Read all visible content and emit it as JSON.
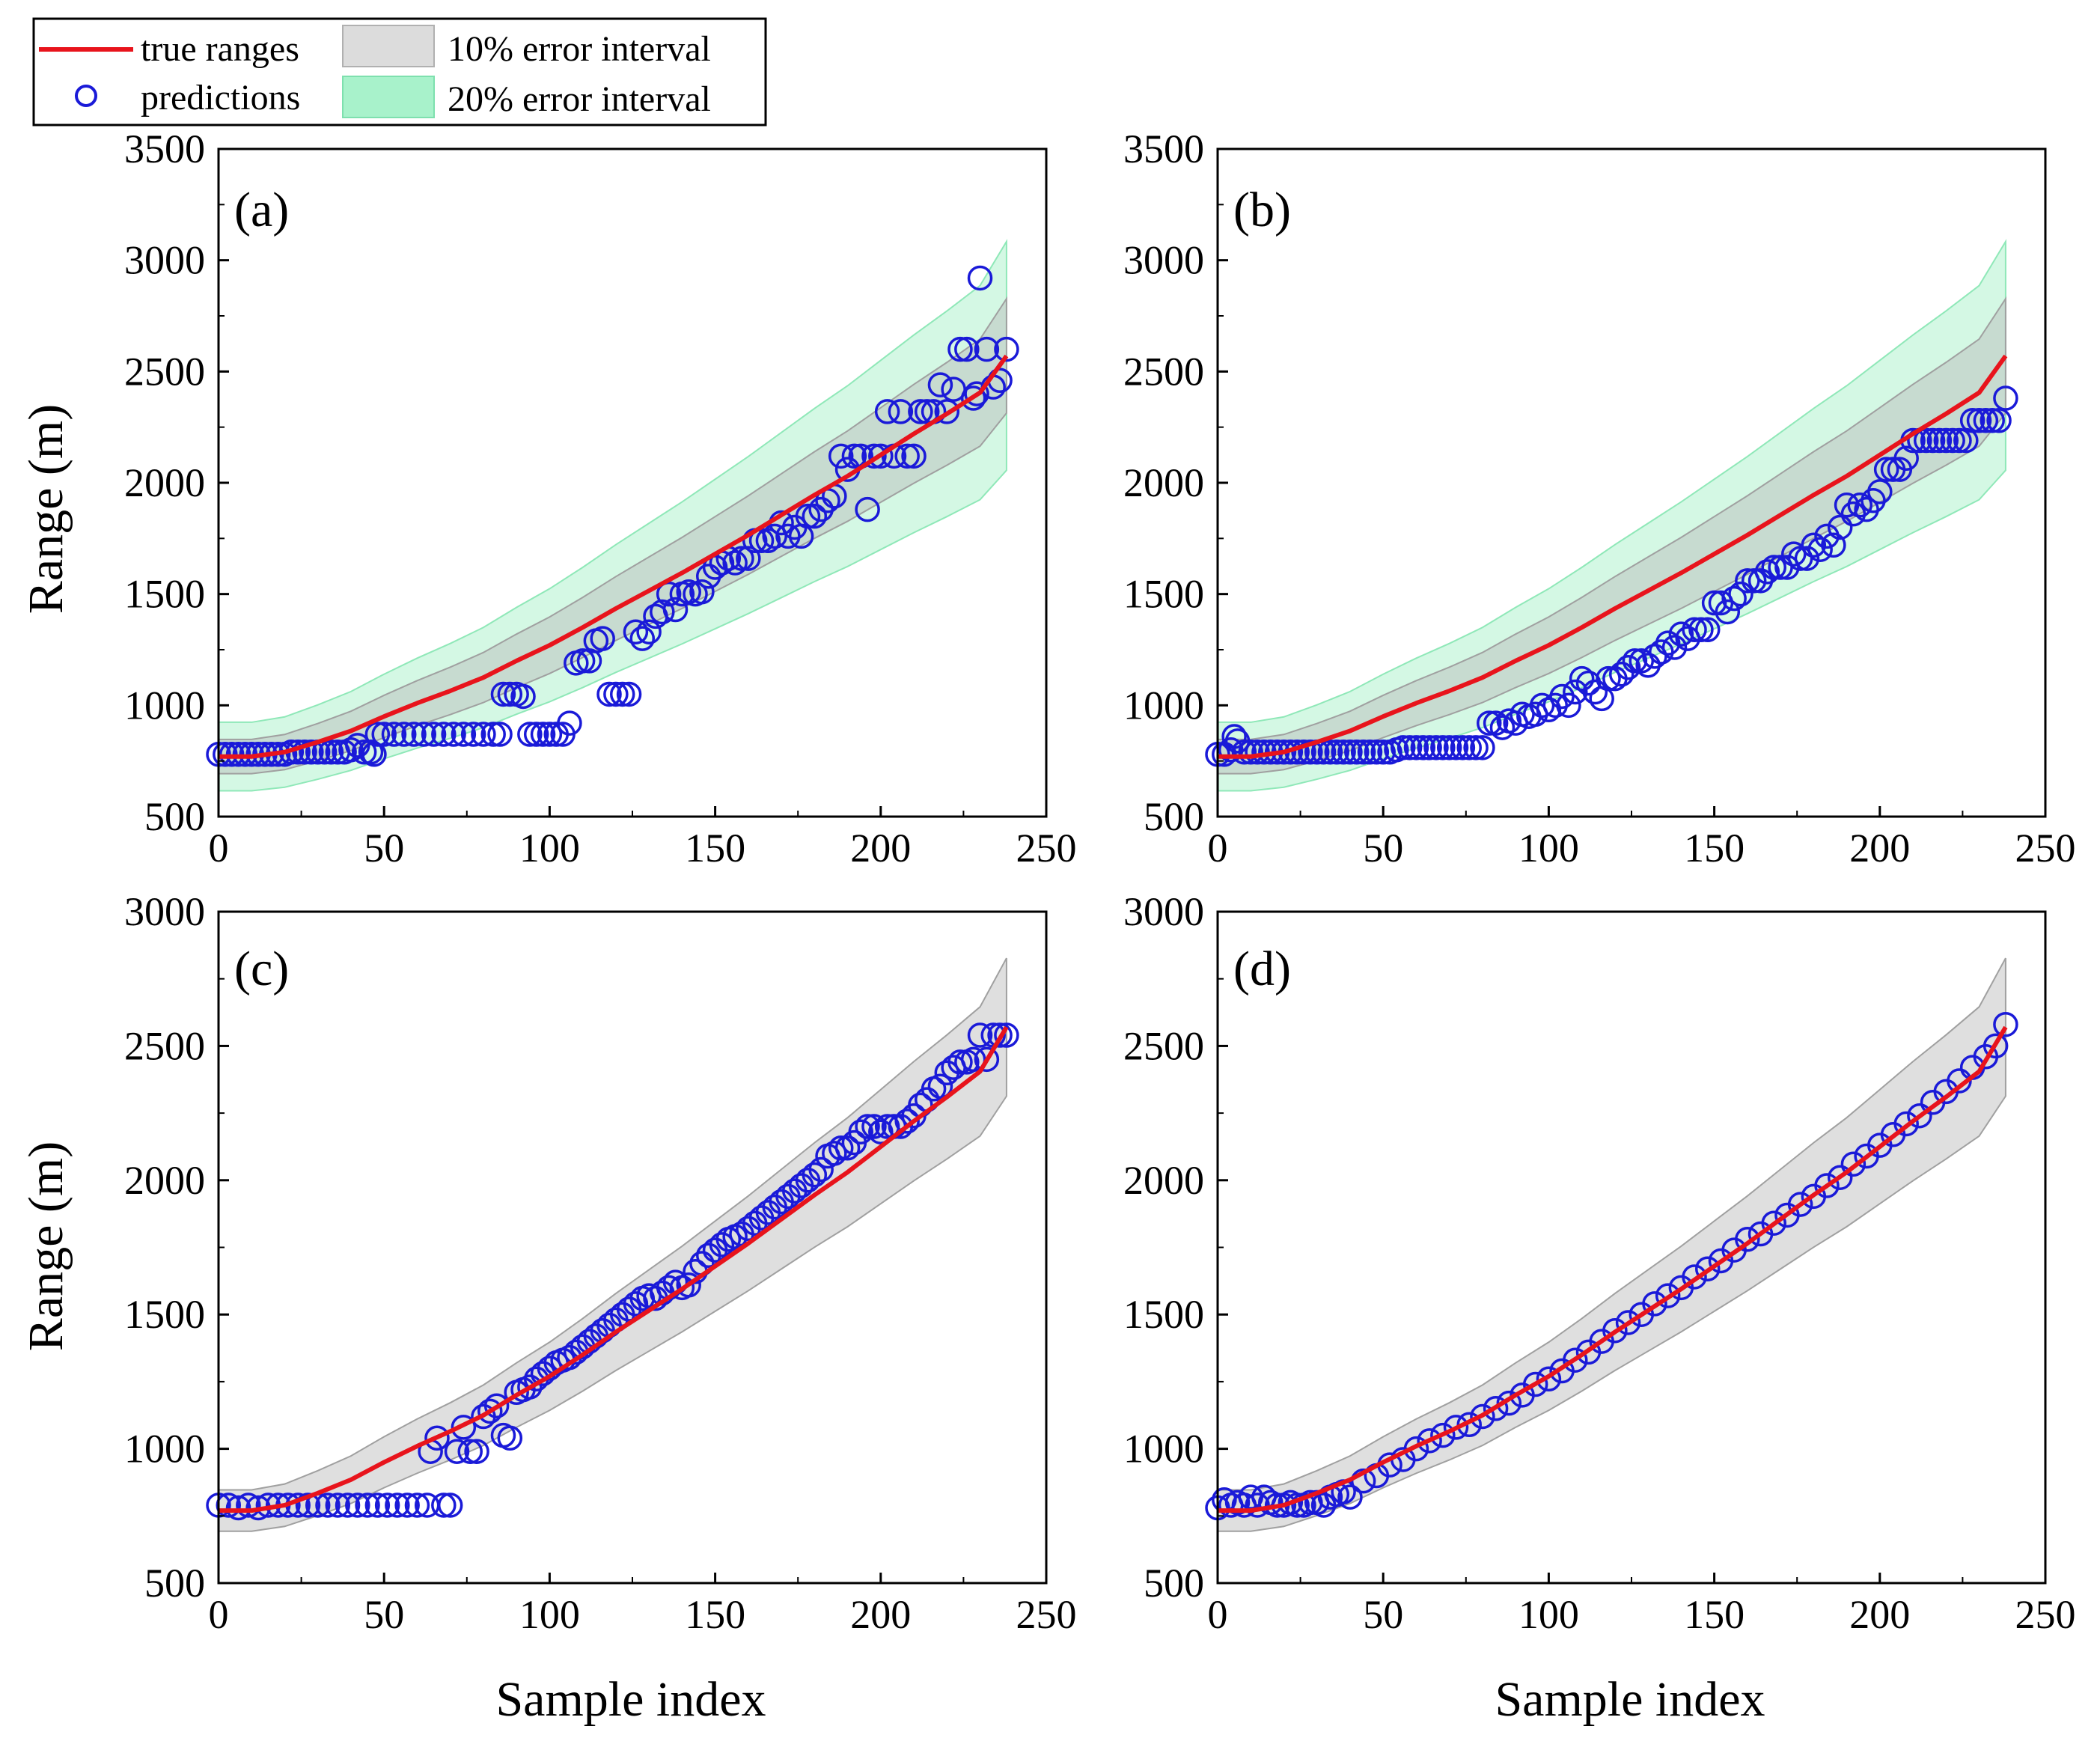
{
  "figure": {
    "legend": {
      "true_ranges": "true ranges",
      "predictions": "predictions",
      "err10": "10% error interval",
      "err20": "20% error interval"
    },
    "xlabel": "Sample index",
    "ylabel": "Range (m)"
  },
  "colors": {
    "true_line": "#e8141c",
    "prediction": "#1a1ad8",
    "band10": "#b9b9b9",
    "band20": "#9ff0c4"
  },
  "chart_data": [
    {
      "panel": "(a)",
      "type": "scatter",
      "xlim": [
        0,
        250
      ],
      "ylim": [
        500,
        3500
      ],
      "xticks": [
        0,
        50,
        100,
        150,
        200,
        250
      ],
      "yticks": [
        500,
        1000,
        1500,
        2000,
        2500,
        3000,
        3500
      ],
      "bands": [
        "10%",
        "20%"
      ],
      "true_ranges": {
        "x": [
          0,
          10,
          20,
          30,
          40,
          50,
          60,
          70,
          80,
          90,
          100,
          110,
          120,
          130,
          140,
          150,
          160,
          170,
          180,
          190,
          200,
          210,
          220,
          230,
          238
        ],
        "y": [
          770,
          770,
          790,
          835,
          885,
          950,
          1010,
          1065,
          1125,
          1200,
          1270,
          1350,
          1435,
          1515,
          1595,
          1680,
          1765,
          1855,
          1945,
          2030,
          2125,
          2220,
          2310,
          2405,
          2570
        ]
      },
      "predictions": {
        "x": [
          0,
          2,
          4,
          6,
          8,
          10,
          12,
          14,
          16,
          18,
          20,
          22,
          24,
          26,
          28,
          30,
          32,
          34,
          36,
          38,
          40,
          42,
          44,
          46,
          47,
          48,
          50,
          53,
          56,
          59,
          62,
          65,
          68,
          71,
          74,
          77,
          80,
          83,
          85,
          86,
          88,
          90,
          92,
          94,
          96,
          98,
          100,
          102,
          104,
          106,
          108,
          110,
          112,
          114,
          116,
          118,
          120,
          122,
          124,
          126,
          128,
          130,
          132,
          134,
          136,
          138,
          140,
          142,
          144,
          146,
          148,
          150,
          152,
          154,
          156,
          158,
          160,
          162,
          164,
          166,
          168,
          170,
          172,
          174,
          176,
          178,
          180,
          182,
          184,
          186,
          188,
          190,
          192,
          194,
          196,
          198,
          200,
          202,
          204,
          206,
          208,
          210,
          212,
          214,
          216,
          218,
          220,
          222,
          224,
          226,
          228,
          229,
          230,
          232,
          234,
          236,
          238
        ],
        "y": [
          780,
          780,
          780,
          780,
          780,
          780,
          780,
          780,
          780,
          780,
          780,
          790,
          790,
          790,
          790,
          790,
          790,
          790,
          790,
          790,
          800,
          820,
          790,
          790,
          780,
          870,
          870,
          870,
          870,
          870,
          870,
          870,
          870,
          870,
          870,
          870,
          870,
          870,
          870,
          1050,
          1050,
          1050,
          1040,
          870,
          870,
          870,
          870,
          870,
          870,
          920,
          1190,
          1200,
          1200,
          1290,
          1300,
          1050,
          1050,
          1050,
          1050,
          1330,
          1300,
          1330,
          1400,
          1420,
          1500,
          1430,
          1500,
          1510,
          1500,
          1510,
          1580,
          1620,
          1640,
          1660,
          1640,
          1660,
          1660,
          1740,
          1740,
          1740,
          1760,
          1820,
          1760,
          1800,
          1760,
          1850,
          1850,
          1880,
          1920,
          1940,
          2120,
          2060,
          2120,
          2120,
          1880,
          2120,
          2120,
          2320,
          2120,
          2320,
          2120,
          2120,
          2320,
          2320,
          2320,
          2440,
          2320,
          2420,
          2600,
          2600,
          2380,
          2400,
          2920,
          2600,
          2430,
          2460,
          2600
        ]
      }
    },
    {
      "panel": "(b)",
      "type": "scatter",
      "xlim": [
        0,
        250
      ],
      "ylim": [
        500,
        3500
      ],
      "xticks": [
        0,
        50,
        100,
        150,
        200,
        250
      ],
      "yticks": [
        500,
        1000,
        1500,
        2000,
        2500,
        3000,
        3500
      ],
      "bands": [
        "10%",
        "20%"
      ],
      "true_ranges": {
        "x": [
          0,
          10,
          20,
          30,
          40,
          50,
          60,
          70,
          80,
          90,
          100,
          110,
          120,
          130,
          140,
          150,
          160,
          170,
          180,
          190,
          200,
          210,
          220,
          230,
          238
        ],
        "y": [
          770,
          770,
          790,
          835,
          885,
          950,
          1010,
          1065,
          1125,
          1200,
          1270,
          1350,
          1435,
          1515,
          1595,
          1680,
          1765,
          1855,
          1945,
          2030,
          2125,
          2220,
          2310,
          2405,
          2570
        ]
      },
      "predictions": {
        "x": [
          0,
          2,
          4,
          5,
          6,
          8,
          10,
          12,
          14,
          16,
          18,
          20,
          22,
          24,
          26,
          28,
          30,
          32,
          34,
          36,
          38,
          40,
          42,
          44,
          46,
          48,
          50,
          52,
          54,
          56,
          58,
          60,
          62,
          64,
          66,
          68,
          70,
          72,
          74,
          76,
          78,
          80,
          82,
          84,
          86,
          88,
          90,
          92,
          94,
          96,
          98,
          100,
          102,
          104,
          106,
          108,
          110,
          112,
          114,
          116,
          118,
          120,
          122,
          124,
          126,
          128,
          130,
          132,
          134,
          136,
          138,
          140,
          142,
          144,
          146,
          148,
          150,
          152,
          154,
          156,
          158,
          160,
          162,
          164,
          166,
          168,
          170,
          172,
          174,
          176,
          178,
          180,
          182,
          184,
          186,
          188,
          190,
          192,
          194,
          196,
          198,
          200,
          202,
          204,
          206,
          208,
          210,
          212,
          214,
          216,
          218,
          220,
          222,
          224,
          226,
          228,
          230,
          232,
          234,
          236,
          238
        ],
        "y": [
          780,
          780,
          800,
          860,
          840,
          790,
          790,
          790,
          790,
          790,
          790,
          790,
          790,
          790,
          790,
          790,
          790,
          790,
          790,
          790,
          790,
          790,
          790,
          790,
          790,
          790,
          790,
          790,
          800,
          810,
          810,
          810,
          810,
          810,
          810,
          810,
          810,
          810,
          810,
          810,
          810,
          810,
          920,
          920,
          900,
          930,
          920,
          960,
          950,
          960,
          1000,
          980,
          1000,
          1040,
          1000,
          1060,
          1120,
          1100,
          1060,
          1030,
          1120,
          1120,
          1140,
          1170,
          1200,
          1200,
          1180,
          1220,
          1240,
          1280,
          1260,
          1320,
          1300,
          1340,
          1340,
          1340,
          1460,
          1460,
          1420,
          1480,
          1500,
          1560,
          1560,
          1560,
          1600,
          1620,
          1620,
          1620,
          1680,
          1660,
          1660,
          1720,
          1700,
          1760,
          1720,
          1800,
          1900,
          1860,
          1900,
          1880,
          1920,
          1960,
          2060,
          2060,
          2060,
          2110,
          2190,
          2190,
          2190,
          2190,
          2190,
          2190,
          2190,
          2190,
          2190,
          2280,
          2280,
          2280,
          2280,
          2280,
          2380
        ]
      }
    },
    {
      "panel": "(c)",
      "type": "scatter",
      "xlim": [
        0,
        250
      ],
      "ylim": [
        500,
        3000
      ],
      "xticks": [
        0,
        50,
        100,
        150,
        200,
        250
      ],
      "yticks": [
        500,
        1000,
        1500,
        2000,
        2500,
        3000
      ],
      "bands": [
        "10%"
      ],
      "true_ranges": {
        "x": [
          0,
          10,
          20,
          30,
          40,
          50,
          60,
          70,
          80,
          90,
          100,
          110,
          120,
          130,
          140,
          150,
          160,
          170,
          180,
          190,
          200,
          210,
          220,
          230,
          238
        ],
        "y": [
          770,
          770,
          790,
          835,
          885,
          950,
          1010,
          1065,
          1125,
          1200,
          1270,
          1350,
          1435,
          1515,
          1595,
          1680,
          1765,
          1855,
          1945,
          2030,
          2125,
          2220,
          2310,
          2405,
          2570
        ]
      },
      "predictions": {
        "x": [
          0,
          3,
          6,
          9,
          12,
          15,
          18,
          21,
          24,
          27,
          30,
          33,
          36,
          39,
          42,
          45,
          48,
          51,
          54,
          57,
          60,
          63,
          64,
          66,
          68,
          70,
          72,
          74,
          76,
          78,
          80,
          82,
          84,
          86,
          88,
          90,
          92,
          94,
          96,
          98,
          100,
          102,
          104,
          106,
          108,
          110,
          112,
          114,
          116,
          118,
          120,
          122,
          124,
          126,
          128,
          130,
          132,
          134,
          136,
          138,
          140,
          142,
          144,
          146,
          148,
          150,
          152,
          154,
          156,
          158,
          160,
          162,
          164,
          166,
          168,
          170,
          172,
          174,
          176,
          178,
          180,
          182,
          184,
          186,
          188,
          190,
          192,
          194,
          196,
          198,
          200,
          202,
          204,
          206,
          208,
          210,
          212,
          214,
          216,
          218,
          220,
          222,
          224,
          226,
          228,
          230,
          232,
          234,
          236,
          238
        ],
        "y": [
          790,
          790,
          780,
          790,
          780,
          790,
          790,
          790,
          790,
          790,
          790,
          790,
          790,
          790,
          790,
          790,
          790,
          790,
          790,
          790,
          790,
          790,
          990,
          1040,
          790,
          790,
          990,
          1080,
          990,
          990,
          1120,
          1140,
          1160,
          1050,
          1040,
          1210,
          1220,
          1230,
          1260,
          1280,
          1300,
          1320,
          1330,
          1340,
          1360,
          1380,
          1400,
          1420,
          1440,
          1460,
          1480,
          1500,
          1520,
          1540,
          1560,
          1570,
          1560,
          1580,
          1600,
          1620,
          1600,
          1610,
          1660,
          1690,
          1720,
          1740,
          1760,
          1780,
          1790,
          1800,
          1820,
          1840,
          1860,
          1880,
          1900,
          1920,
          1940,
          1960,
          1980,
          2000,
          2020,
          2040,
          2090,
          2100,
          2120,
          2120,
          2140,
          2180,
          2200,
          2200,
          2180,
          2200,
          2200,
          2200,
          2220,
          2240,
          2280,
          2300,
          2340,
          2350,
          2400,
          2420,
          2440,
          2440,
          2450,
          2540,
          2450,
          2540,
          2540,
          2540
        ]
      }
    },
    {
      "panel": "(d)",
      "type": "scatter",
      "xlim": [
        0,
        250
      ],
      "ylim": [
        500,
        3000
      ],
      "xticks": [
        0,
        50,
        100,
        150,
        200,
        250
      ],
      "yticks": [
        500,
        1000,
        1500,
        2000,
        2500,
        3000
      ],
      "bands": [
        "10%"
      ],
      "true_ranges": {
        "x": [
          0,
          10,
          20,
          30,
          40,
          50,
          60,
          70,
          80,
          90,
          100,
          110,
          120,
          130,
          140,
          150,
          160,
          170,
          180,
          190,
          200,
          210,
          220,
          230,
          238
        ],
        "y": [
          770,
          770,
          790,
          835,
          885,
          950,
          1010,
          1065,
          1125,
          1200,
          1270,
          1350,
          1435,
          1515,
          1595,
          1680,
          1765,
          1855,
          1945,
          2030,
          2125,
          2220,
          2310,
          2405,
          2570
        ]
      },
      "predictions": {
        "x": [
          0,
          2,
          4,
          6,
          8,
          10,
          12,
          14,
          16,
          18,
          20,
          22,
          24,
          26,
          28,
          30,
          32,
          34,
          36,
          38,
          40,
          44,
          48,
          52,
          56,
          60,
          64,
          68,
          72,
          76,
          80,
          84,
          88,
          92,
          96,
          100,
          104,
          108,
          112,
          116,
          120,
          124,
          128,
          132,
          136,
          140,
          144,
          148,
          152,
          156,
          160,
          164,
          168,
          172,
          176,
          180,
          184,
          188,
          192,
          196,
          200,
          204,
          208,
          212,
          216,
          220,
          224,
          228,
          232,
          235,
          238
        ],
        "y": [
          780,
          810,
          790,
          800,
          790,
          820,
          790,
          820,
          800,
          790,
          790,
          800,
          790,
          790,
          800,
          800,
          790,
          820,
          830,
          840,
          820,
          880,
          900,
          940,
          960,
          1000,
          1030,
          1050,
          1080,
          1090,
          1120,
          1150,
          1170,
          1200,
          1240,
          1260,
          1290,
          1330,
          1360,
          1400,
          1440,
          1470,
          1500,
          1540,
          1570,
          1600,
          1640,
          1670,
          1700,
          1740,
          1780,
          1800,
          1840,
          1870,
          1910,
          1940,
          1980,
          2010,
          2060,
          2090,
          2130,
          2170,
          2210,
          2240,
          2290,
          2330,
          2370,
          2420,
          2460,
          2500,
          2580
        ]
      }
    }
  ]
}
